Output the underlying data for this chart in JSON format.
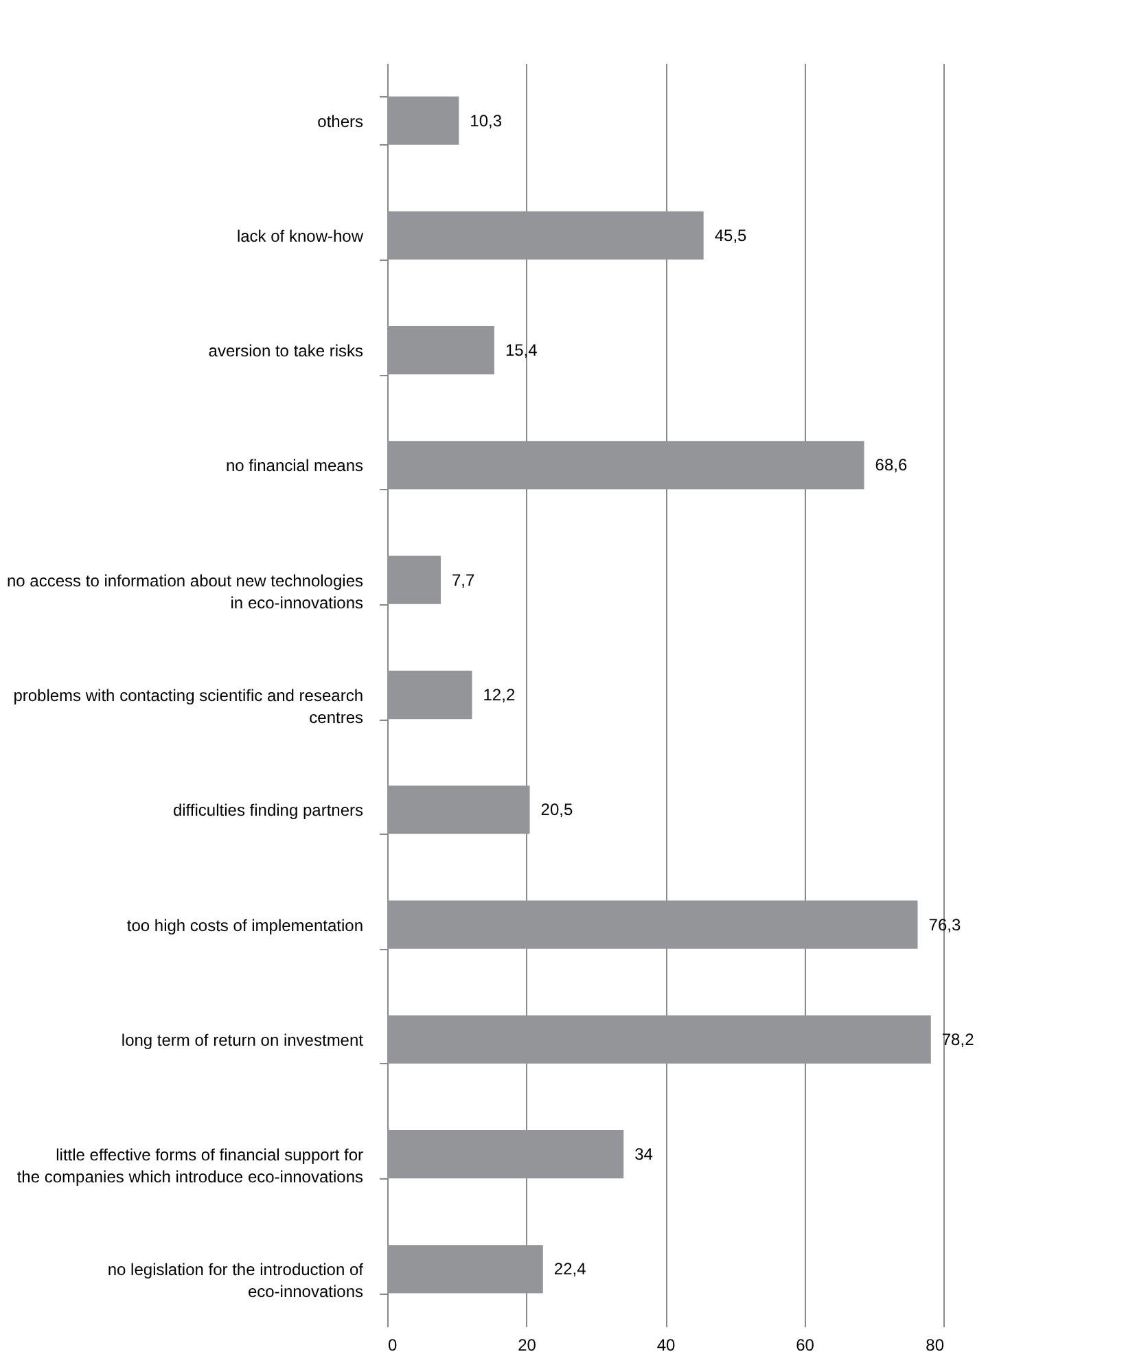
{
  "chart_data": {
    "type": "bar",
    "orientation": "horizontal",
    "categories": [
      "others",
      "lack of know-how",
      "aversion to take risks",
      "no financial means",
      "no access to information about new technologies in eco-innovations",
      "problems with contacting scientific and research centres",
      "difficulties finding partners",
      "too high costs of implementation",
      "long term of return on investment",
      "little effective forms of financial support for the companies which introduce eco-innovations",
      "no legislation for the introduction of eco-innovations"
    ],
    "values": [
      10.3,
      45.5,
      15.4,
      68.6,
      7.7,
      12.2,
      20.5,
      76.3,
      78.2,
      34,
      22.4
    ],
    "value_labels": [
      "10,3",
      "45,5",
      "15,4",
      "68,6",
      "7,7",
      "12,2",
      "20,5",
      "76,3",
      "78,2",
      "34",
      "22,4"
    ],
    "color": "#939598",
    "xlim": [
      0,
      80
    ],
    "xticks": [
      0,
      20,
      40,
      60,
      80
    ],
    "grid": "x"
  }
}
